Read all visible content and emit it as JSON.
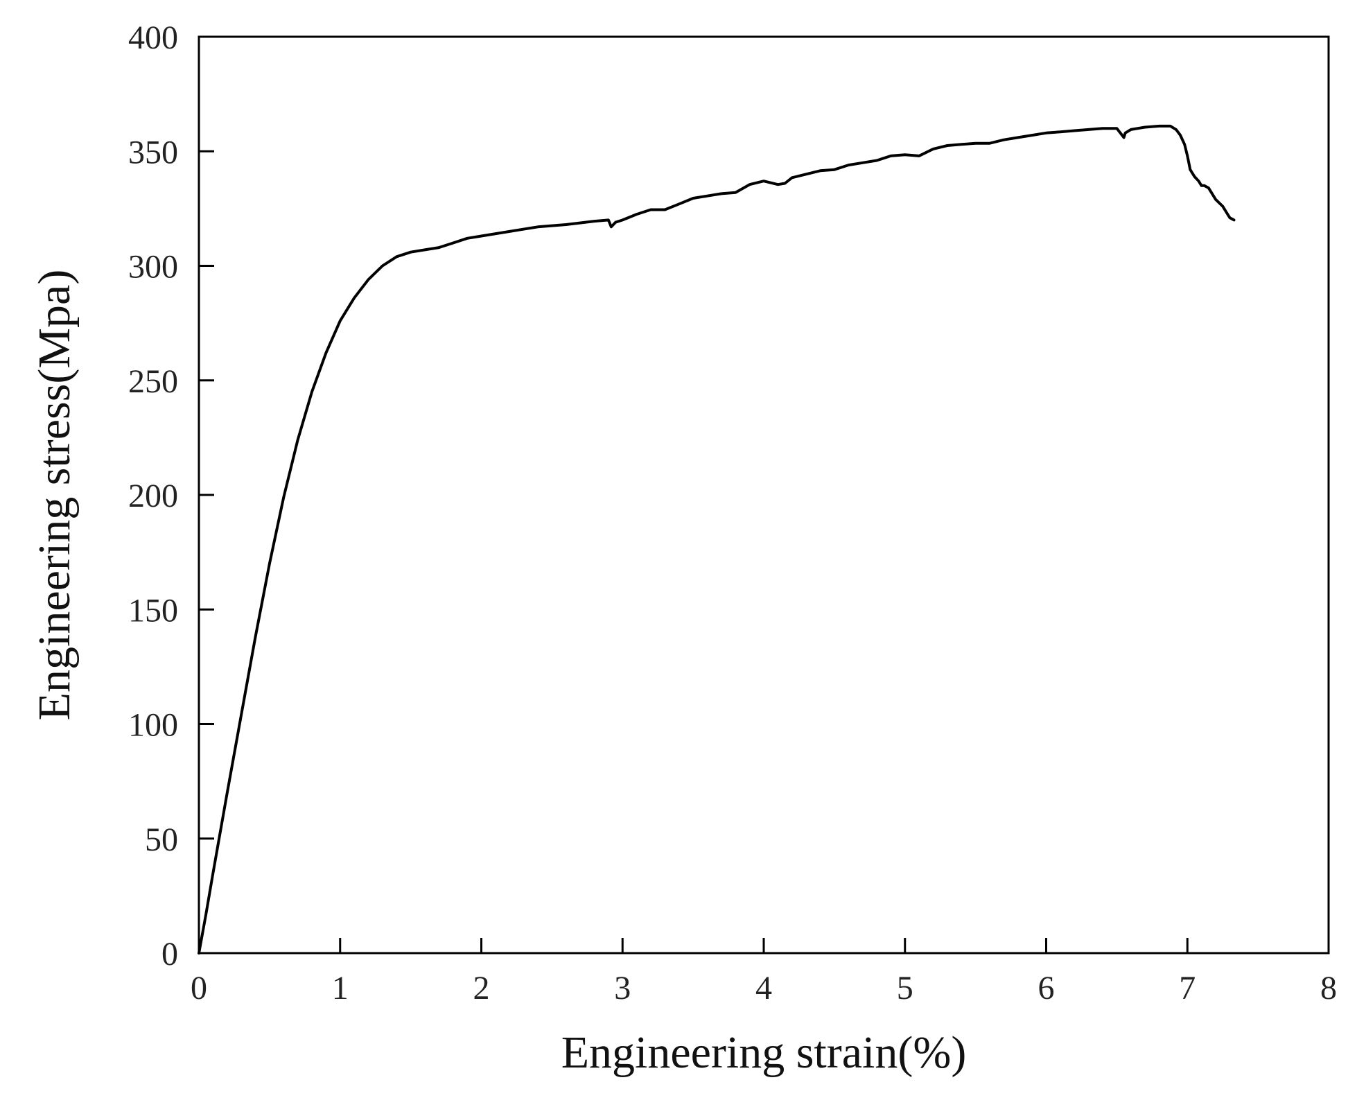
{
  "chart_data": {
    "type": "line",
    "title": "",
    "xlabel": "Engineering strain(%)",
    "ylabel": "Engineering stress(Mpa)",
    "xlim": [
      0,
      8
    ],
    "ylim": [
      0,
      400
    ],
    "x_ticks": [
      0,
      1,
      2,
      3,
      4,
      5,
      6,
      7,
      8
    ],
    "y_ticks": [
      0,
      50,
      100,
      150,
      200,
      250,
      300,
      350,
      400
    ],
    "grid": false,
    "legend": "none",
    "series": [
      {
        "color": "#000000",
        "x": [
          0,
          0.05,
          0.1,
          0.2,
          0.3,
          0.4,
          0.5,
          0.6,
          0.7,
          0.8,
          0.9,
          1.0,
          1.1,
          1.2,
          1.3,
          1.4,
          1.5,
          1.6,
          1.7,
          1.8,
          1.9,
          2.0,
          2.2,
          2.4,
          2.6,
          2.8,
          2.9,
          2.92,
          2.95,
          3.0,
          3.1,
          3.2,
          3.3,
          3.4,
          3.5,
          3.6,
          3.7,
          3.8,
          3.9,
          4.0,
          4.1,
          4.15,
          4.2,
          4.3,
          4.4,
          4.5,
          4.6,
          4.7,
          4.8,
          4.9,
          5.0,
          5.1,
          5.2,
          5.3,
          5.4,
          5.5,
          5.6,
          5.7,
          5.8,
          5.9,
          6.0,
          6.1,
          6.2,
          6.3,
          6.4,
          6.5,
          6.55,
          6.56,
          6.6,
          6.7,
          6.8,
          6.88,
          6.92,
          6.95,
          6.98,
          7.0,
          7.02,
          7.05,
          7.08,
          7.1,
          7.12,
          7.15,
          7.2,
          7.25,
          7.28,
          7.3,
          7.33
        ],
        "y": [
          0,
          17,
          35,
          70,
          104,
          138,
          170,
          199,
          224,
          245,
          262,
          276,
          286,
          294,
          300,
          304,
          306,
          307,
          308,
          310,
          312,
          313,
          315,
          317,
          318,
          319.5,
          320,
          317,
          319,
          320,
          322.5,
          324.5,
          324.5,
          327,
          329.5,
          330.5,
          331.5,
          332,
          335.5,
          337,
          335.5,
          336,
          338.5,
          340,
          341.5,
          342,
          344,
          345,
          346,
          348,
          348.5,
          348,
          351,
          352.5,
          353,
          353.5,
          353.5,
          355,
          356,
          357,
          358,
          358.5,
          359,
          359.5,
          360,
          360,
          356,
          358,
          359.5,
          360.5,
          361,
          361,
          359.5,
          357,
          353,
          348,
          342,
          339,
          337,
          335,
          335,
          334,
          329,
          326,
          323,
          321,
          320
        ]
      }
    ]
  }
}
